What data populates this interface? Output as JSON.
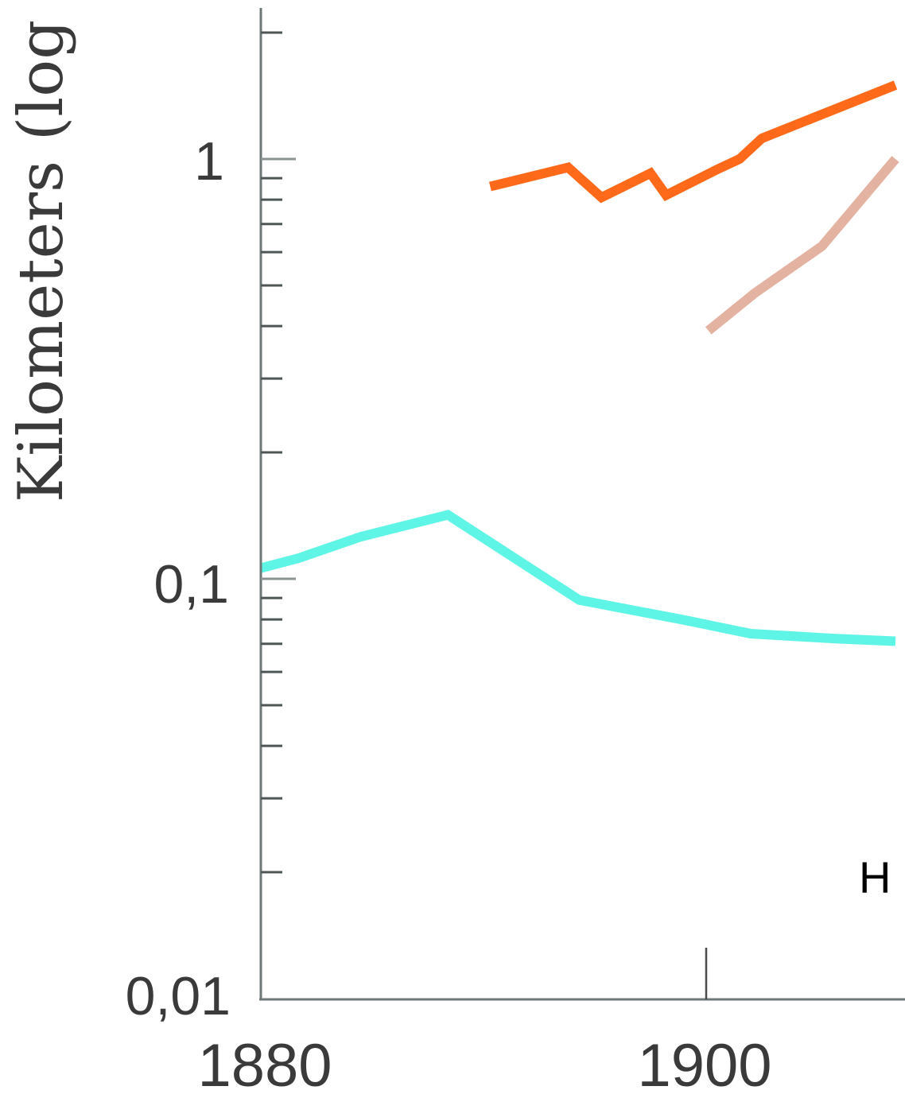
{
  "chart_data": {
    "type": "line",
    "ylabel": "Kilometers (log",
    "yscale": "log",
    "ylim": [
      0.01,
      2
    ],
    "xlim": [
      1880,
      1908.5
    ],
    "yticks": [
      {
        "value": 1,
        "label": "1"
      },
      {
        "value": 0.1,
        "label": "0,1"
      },
      {
        "value": 0.01,
        "label": "0,01"
      }
    ],
    "xticks": [
      {
        "value": 1880,
        "label": "1880"
      },
      {
        "value": 1900,
        "label": "1900"
      }
    ],
    "annotations": [
      {
        "text": "H",
        "x": 1907.2,
        "y": 0.018
      }
    ],
    "grid": false,
    "series": [
      {
        "color": "#ff6a1a",
        "x": [
          1890.3,
          1893.8,
          1895.3,
          1897.5,
          1898.2,
          1900.5,
          1901.5,
          1902.5,
          1908.5
        ],
        "y": [
          0.86,
          0.955,
          0.81,
          0.925,
          0.82,
          0.945,
          1.0,
          1.12,
          1.5
        ]
      },
      {
        "color": "#e4b2a0",
        "x": [
          1900.1,
          1902.2,
          1905.2,
          1908.5
        ],
        "y": [
          0.39,
          0.48,
          0.62,
          1.0
        ]
      },
      {
        "color": "#5ff5e6",
        "x": [
          1880,
          1881.7,
          1884.5,
          1888.4,
          1894.3,
          1898.9,
          1902.0,
          1905.8,
          1908.5
        ],
        "y": [
          0.106,
          0.112,
          0.126,
          0.142,
          0.089,
          0.08,
          0.074,
          0.072,
          0.071
        ]
      }
    ]
  }
}
